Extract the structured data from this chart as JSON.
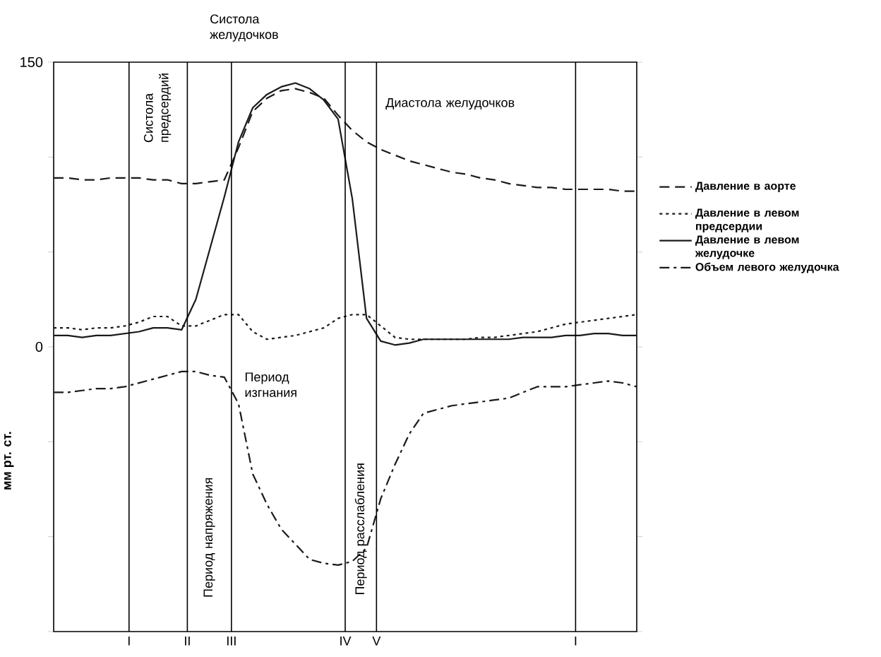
{
  "chart_data": {
    "type": "line",
    "ylabel": "мм рт. ст.",
    "categories": [
      null,
      null,
      null,
      null,
      null,
      null,
      null,
      null,
      null,
      null,
      null,
      null,
      null,
      null,
      null,
      null,
      null,
      null,
      null,
      null,
      null,
      null,
      null,
      null,
      null,
      null,
      null,
      null,
      null,
      null,
      null,
      null,
      null,
      null,
      null,
      null,
      null,
      null,
      null,
      null,
      null,
      null
    ],
    "ylim": [
      -150,
      150
    ],
    "yticks": [
      {
        "value": -150,
        "label": null
      },
      {
        "value": -100,
        "label": null
      },
      {
        "value": -50,
        "label": null
      },
      {
        "value": 0,
        "label": "0"
      },
      {
        "value": 50,
        "label": null
      },
      {
        "value": 100,
        "label": null
      },
      {
        "value": 150,
        "label": "150"
      }
    ],
    "tick_labels": "y",
    "legend": "right",
    "series": [
      {
        "name": "Давление в аорте",
        "color": "#1a1a1a",
        "line_style": "dashed",
        "values": [
          89,
          89,
          88,
          88,
          89,
          89,
          89,
          88,
          88,
          86,
          86,
          87,
          88,
          105,
          124,
          131,
          135,
          136,
          134,
          131,
          122,
          114,
          108,
          104,
          101,
          98,
          96,
          94,
          92,
          91,
          89,
          88,
          86,
          85,
          84,
          84,
          83,
          83,
          83,
          83,
          82,
          82
        ]
      },
      {
        "name": "Давление в левом предсердии",
        "color": "#1a1a1a",
        "line_style": "dotted",
        "values": [
          10,
          10,
          9,
          10,
          10,
          11,
          13,
          16,
          16,
          11,
          11,
          14,
          17,
          17,
          8,
          4,
          5,
          6,
          8,
          10,
          15,
          17,
          17,
          11,
          5,
          4,
          4,
          4,
          4,
          4,
          5,
          5,
          6,
          7,
          8,
          10,
          12,
          13,
          14,
          15,
          16,
          17
        ]
      },
      {
        "name": "Давление в левом желудочке",
        "color": "#1a1a1a",
        "line_style": "solid",
        "values": [
          6,
          6,
          5,
          6,
          6,
          7,
          8,
          10,
          10,
          9,
          25,
          52,
          79,
          108,
          126,
          133,
          137,
          139,
          136,
          130,
          120,
          78,
          15,
          3,
          1,
          2,
          4,
          4,
          4,
          4,
          4,
          4,
          4,
          5,
          5,
          5,
          6,
          6,
          7,
          7,
          6,
          6
        ]
      },
      {
        "name": "Объем левого желудочка",
        "color": "#1a1a1a",
        "line_style": "dashdot",
        "values": [
          -24,
          -24,
          -23,
          -22,
          -22,
          -21,
          -19,
          -17,
          -15,
          -13,
          -13,
          -15,
          -16,
          -30,
          -67,
          -83,
          -96,
          -104,
          -112,
          -114,
          -115,
          -113,
          -106,
          -80,
          -62,
          -46,
          -35,
          -33,
          -31,
          -30,
          -29,
          -28,
          -27,
          -24,
          -21,
          -21,
          -21,
          -20,
          -19,
          -18,
          -19,
          -21
        ]
      }
    ],
    "annotations": [
      "Систола желудочков",
      "Систола предсердий",
      "Диастола желудочков",
      "Период изгнания",
      "Период напряжения",
      "Период расслабления",
      "I",
      "II",
      "III",
      "IV",
      "V",
      "I"
    ]
  }
}
